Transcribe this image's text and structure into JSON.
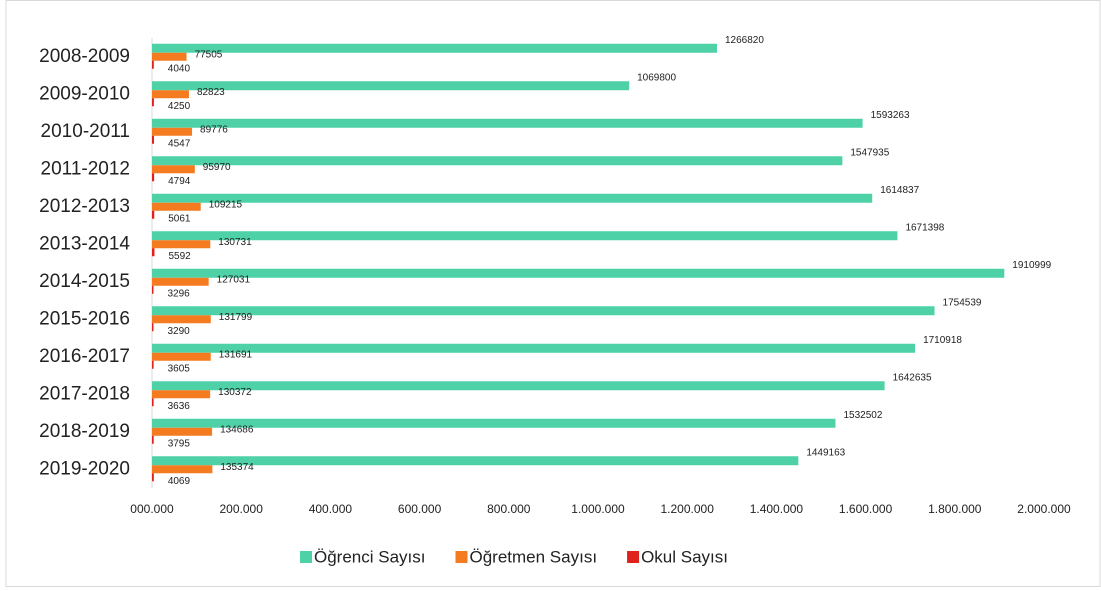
{
  "chart_data": {
    "type": "bar",
    "orientation": "horizontal",
    "categories": [
      "2008-2009",
      "2009-2010",
      "2010-2011",
      "2011-2012",
      "2012-2013",
      "2013-2014",
      "2014-2015",
      "2015-2016",
      "2016-2017",
      "2017-2018",
      "2018-2019",
      "2019-2020"
    ],
    "series": [
      {
        "name": "Öğrenci Sayısı",
        "color": "#4fd1a8",
        "values": [
          1266820,
          1069800,
          1593263,
          1547935,
          1614837,
          1671398,
          1910999,
          1754539,
          1710918,
          1642635,
          1532502,
          1449163
        ]
      },
      {
        "name": "Öğretmen Sayısı",
        "color": "#f47b20",
        "values": [
          77505,
          82823,
          89776,
          95970,
          109215,
          130731,
          127031,
          131799,
          131691,
          130372,
          134686,
          135374
        ]
      },
      {
        "name": "Okul Sayısı",
        "color": "#e0221c",
        "values": [
          4040,
          4250,
          4547,
          4794,
          5061,
          5592,
          3296,
          3290,
          3605,
          3636,
          3795,
          4069
        ]
      }
    ],
    "xlim": [
      0,
      2000000
    ],
    "xticks": [
      {
        "value": 0,
        "label": "000.000"
      },
      {
        "value": 200000,
        "label": "200.000"
      },
      {
        "value": 400000,
        "label": "400.000"
      },
      {
        "value": 600000,
        "label": "600.000"
      },
      {
        "value": 800000,
        "label": "800.000"
      },
      {
        "value": 1000000,
        "label": "1.000.000"
      },
      {
        "value": 1200000,
        "label": "1.200.000"
      },
      {
        "value": 1400000,
        "label": "1.400.000"
      },
      {
        "value": 1600000,
        "label": "1.600.000"
      },
      {
        "value": 1800000,
        "label": "1.800.000"
      },
      {
        "value": 2000000,
        "label": "2.000.000"
      }
    ],
    "grid": false,
    "legend": "bottom"
  }
}
